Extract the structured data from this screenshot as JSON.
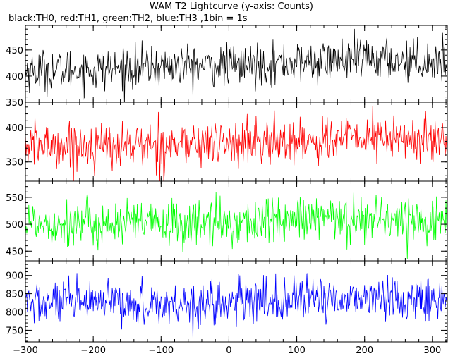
{
  "chart_data": {
    "type": "line",
    "title": "WAM T2 Lightcurve (y-axis: Counts)",
    "subtitle": "black:TH0, red:TH1, green:TH2, blue:TH3 ,1bin = 1s",
    "xlim": [
      -300,
      322
    ],
    "x_ticks": [
      -300,
      -200,
      -100,
      0,
      100,
      200,
      300
    ],
    "x_tick_labels": [
      "−300",
      "−200",
      "−100",
      "0",
      "100",
      "200",
      "300"
    ],
    "bin_seconds": 1,
    "grid": false,
    "series": [
      {
        "name": "TH0",
        "color": "#000000",
        "ylim": [
          350,
          497
        ],
        "y_ticks": [
          350,
          400,
          450
        ],
        "y_tick_labels": [
          "350",
          "400",
          "450"
        ],
        "trend": [
          [
            -300,
            410
          ],
          [
            -200,
            412
          ],
          [
            -100,
            418
          ],
          [
            0,
            420
          ],
          [
            100,
            425
          ],
          [
            200,
            432
          ],
          [
            320,
            428
          ]
        ],
        "noise_sd": 20
      },
      {
        "name": "TH1",
        "color": "#ff0000",
        "ylim": [
          322,
          437
        ],
        "y_ticks": [
          350,
          400
        ],
        "y_tick_labels": [
          "350",
          "400"
        ],
        "trend": [
          [
            -300,
            374
          ],
          [
            -200,
            373
          ],
          [
            -100,
            375
          ],
          [
            0,
            377
          ],
          [
            100,
            380
          ],
          [
            200,
            386
          ],
          [
            320,
            380
          ]
        ],
        "noise_sd": 17
      },
      {
        "name": "TH2",
        "color": "#00ff00",
        "ylim": [
          432,
          580
        ],
        "y_ticks": [
          450,
          500,
          550
        ],
        "y_tick_labels": [
          "450",
          "500",
          "550"
        ],
        "trend": [
          [
            -300,
            505
          ],
          [
            -200,
            500
          ],
          [
            -100,
            500
          ],
          [
            0,
            502
          ],
          [
            100,
            508
          ],
          [
            200,
            512
          ],
          [
            320,
            506
          ]
        ],
        "noise_sd": 22
      },
      {
        "name": "TH3",
        "color": "#0000ff",
        "ylim": [
          718,
          940
        ],
        "y_ticks": [
          750,
          800,
          850,
          900
        ],
        "y_tick_labels": [
          "750",
          "800",
          "850",
          "900"
        ],
        "trend": [
          [
            -300,
            825
          ],
          [
            -200,
            822
          ],
          [
            -100,
            822
          ],
          [
            0,
            824
          ],
          [
            100,
            832
          ],
          [
            200,
            840
          ],
          [
            320,
            832
          ]
        ],
        "noise_sd": 30
      }
    ]
  }
}
